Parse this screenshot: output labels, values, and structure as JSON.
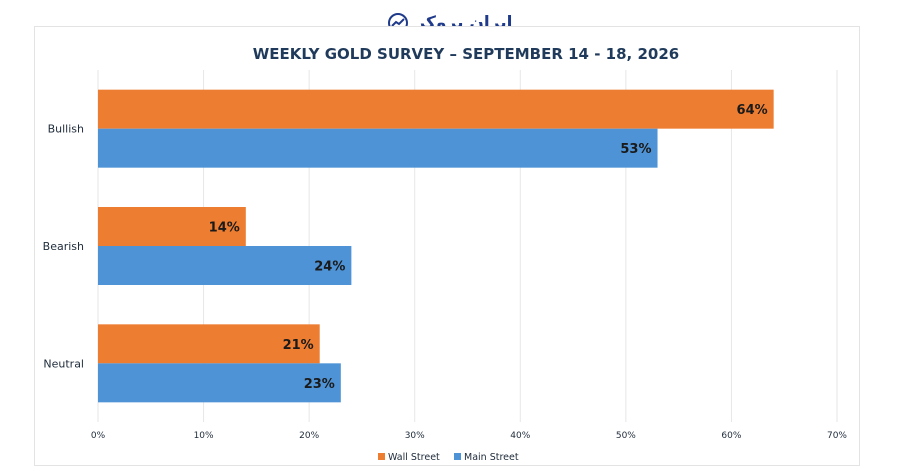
{
  "watermark": {
    "text": "ایران بروکر"
  },
  "colors": {
    "wall_street": "#ED7D31",
    "main_street": "#4E93D6",
    "title": "#1f3a5a",
    "label": "#1e2b3a",
    "grid": "#e6e6e6"
  },
  "chart_data": {
    "type": "bar",
    "orientation": "horizontal",
    "title": "WEEKLY GOLD SURVEY – SEPTEMBER 14 - 18, 2026",
    "categories": [
      "Bullish",
      "Bearish",
      "Neutral"
    ],
    "series": [
      {
        "name": "Wall Street",
        "values": [
          64,
          14,
          21
        ],
        "labels": [
          "64%",
          "14%",
          "21%"
        ]
      },
      {
        "name": "Main Street",
        "values": [
          53,
          24,
          23
        ],
        "labels": [
          "53%",
          "24%",
          "23%"
        ]
      }
    ],
    "xlim": [
      0,
      70
    ],
    "xticks": [
      "0%",
      "10%",
      "20%",
      "30%",
      "40%",
      "50%",
      "60%",
      "70%"
    ],
    "grid": true,
    "legend_position": "bottom"
  }
}
